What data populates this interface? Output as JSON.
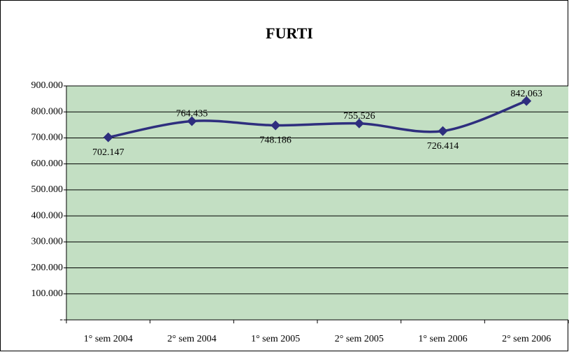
{
  "chart_data": {
    "type": "line",
    "title": "FURTI",
    "categories": [
      "1° sem 2004",
      "2° sem 2004",
      "1° sem 2005",
      "2° sem 2005",
      "1° sem 2006",
      "2° sem 2006"
    ],
    "series": [
      {
        "name": "FURTI",
        "color": "#2e2e7e",
        "values": [
          702147,
          764435,
          748186,
          755526,
          726414,
          842063
        ],
        "value_labels": [
          "702.147",
          "764.435",
          "748.186",
          "755.526",
          "726.414",
          "842.063"
        ]
      }
    ],
    "ylim": [
      0,
      900000
    ],
    "yticks": [
      {
        "value": 0,
        "label": "-"
      },
      {
        "value": 100000,
        "label": "100.000"
      },
      {
        "value": 200000,
        "label": "200.000"
      },
      {
        "value": 300000,
        "label": "300.000"
      },
      {
        "value": 400000,
        "label": "400.000"
      },
      {
        "value": 500000,
        "label": "500.000"
      },
      {
        "value": 600000,
        "label": "600.000"
      },
      {
        "value": 700000,
        "label": "700.000"
      },
      {
        "value": 800000,
        "label": "800.000"
      },
      {
        "value": 900000,
        "label": "900.000"
      }
    ],
    "grid": true,
    "plot_background": "#c3dfc3"
  }
}
